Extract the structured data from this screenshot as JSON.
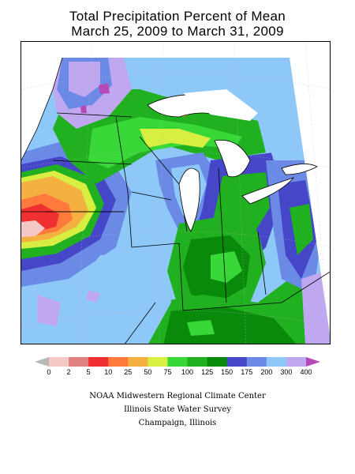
{
  "title": {
    "line1": "Total Precipitation Percent of Mean",
    "line2": "March 25, 2009 to March 31, 2009"
  },
  "legend": {
    "ticks": [
      "0",
      "2",
      "5",
      "10",
      "25",
      "50",
      "75",
      "100",
      "125",
      "150",
      "175",
      "200",
      "300",
      "400"
    ],
    "colors": [
      "#f5c8c8",
      "#e08080",
      "#f03030",
      "#ff7a3c",
      "#f4b040",
      "#d8ee40",
      "#38d838",
      "#20b020",
      "#0a8a0a",
      "#4646c8",
      "#6a8ae6",
      "#8ec8f8",
      "#c0a8f0"
    ],
    "under_color": "#b8b8b8",
    "over_color": "#b848b8"
  },
  "credits": {
    "line1": "NOAA Midwestern Regional Climate Center",
    "line2": "Illinois State Water Survey",
    "line3": "Champaign, Illinois"
  }
}
